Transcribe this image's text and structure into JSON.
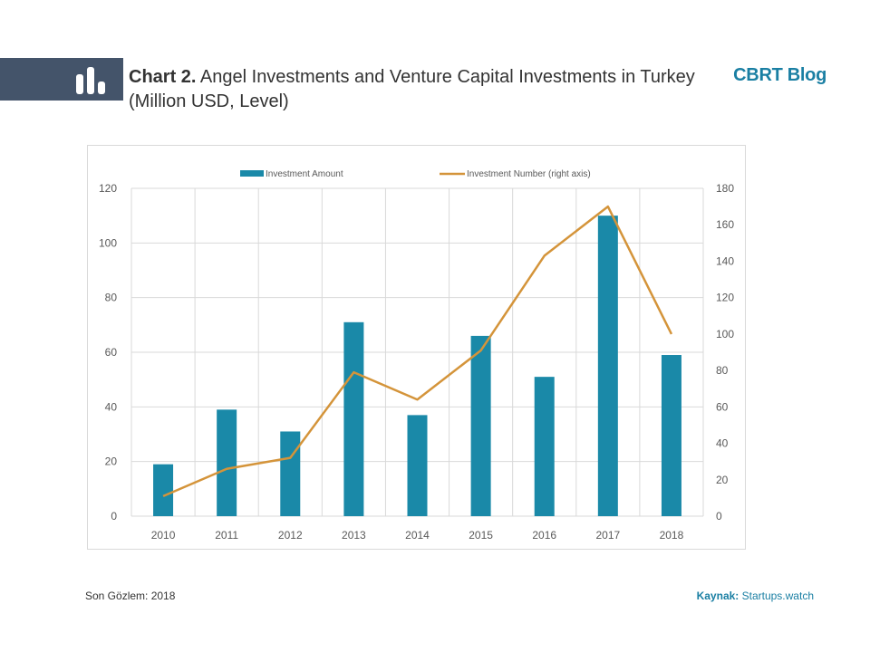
{
  "header": {
    "title_bold": "Chart 2.",
    "title_rest": " Angel Investments and Venture Capital Investments in Turkey (Million USD, Level)",
    "brand": "CBRT Blog",
    "icon": "bar-chart-icon"
  },
  "footer": {
    "last_observation": "Son Gözlem: 2018",
    "source_label": "Kaynak:",
    "source_value": " Startups.watch"
  },
  "colors": {
    "bar": "#1a89a8",
    "line": "#d4943a",
    "header_bar": "#44546a",
    "brand": "#1a7fa3"
  },
  "chart_data": {
    "type": "bar",
    "title": "",
    "xlabel": "",
    "ylabel": "",
    "categories": [
      "2010",
      "2011",
      "2012",
      "2013",
      "2014",
      "2015",
      "2016",
      "2017",
      "2018"
    ],
    "series": [
      {
        "name": "Investment Amount",
        "type": "bar",
        "axis": "left",
        "values": [
          19,
          39,
          31,
          71,
          37,
          66,
          51,
          110,
          59
        ]
      },
      {
        "name": "Investment Number (right axis)",
        "type": "line",
        "axis": "right",
        "values": [
          11,
          26,
          32,
          79,
          64,
          91,
          143,
          170,
          100
        ]
      }
    ],
    "ylim": [
      0,
      120
    ],
    "y_ticks": [
      "0",
      "20",
      "40",
      "60",
      "80",
      "100",
      "120"
    ],
    "y2lim": [
      0,
      180
    ],
    "y2_ticks": [
      "0",
      "20",
      "40",
      "60",
      "80",
      "100",
      "120",
      "140",
      "160",
      "180"
    ],
    "grid": true,
    "legend_position": "top"
  }
}
